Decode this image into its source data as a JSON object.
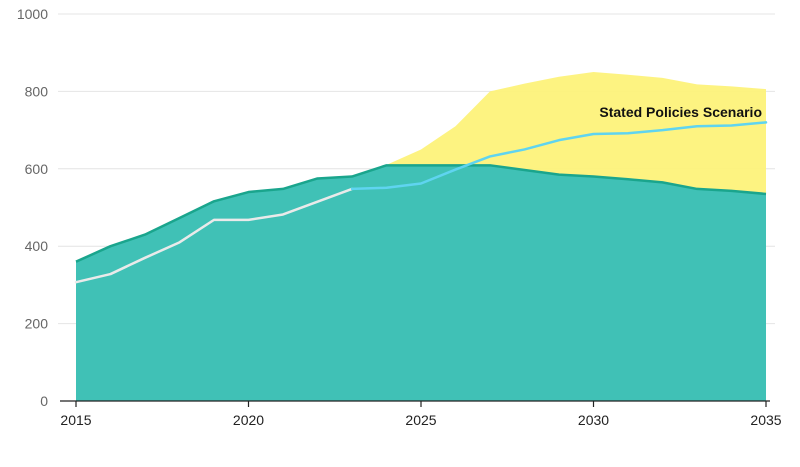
{
  "chart_data": {
    "type": "area",
    "title": "",
    "xlabel": "",
    "ylabel": "",
    "xlim": [
      2015,
      2035
    ],
    "ylim": [
      0,
      1000
    ],
    "y_ticks": [
      "0",
      "200",
      "400",
      "600",
      "800",
      "1000"
    ],
    "x_ticks": [
      "2015",
      "2020",
      "2025",
      "2030",
      "2035"
    ],
    "grid": "horizontal",
    "annotation": "Stated Policies Scenario",
    "series": [
      {
        "role": "upper-band",
        "color": "#fdf27a",
        "x": [
          2024,
          2025,
          2026,
          2027,
          2028,
          2029,
          2030,
          2031,
          2032,
          2033,
          2034,
          2035
        ],
        "values": [
          610,
          650,
          710,
          800,
          820,
          838,
          850,
          843,
          835,
          818,
          813,
          806
        ]
      },
      {
        "role": "lower-area",
        "color": "#40c1b6",
        "line_color": "#1aa58d",
        "x": [
          2015,
          2016,
          2017,
          2018,
          2019,
          2020,
          2021,
          2022,
          2023,
          2024,
          2025,
          2026,
          2027,
          2028,
          2029,
          2030,
          2031,
          2032,
          2033,
          2034,
          2035
        ],
        "values": [
          360,
          400,
          430,
          473,
          516,
          540,
          548,
          575,
          580,
          609,
          609,
          609,
          609,
          597,
          585,
          580,
          573,
          565,
          548,
          543,
          535
        ]
      },
      {
        "role": "historical-line",
        "color": "#eaeaea",
        "x": [
          2015,
          2016,
          2017,
          2018,
          2019,
          2020,
          2021,
          2022,
          2023
        ],
        "values": [
          307,
          328,
          370,
          410,
          468,
          468,
          482,
          515,
          548
        ]
      },
      {
        "name": "Stated Policies Scenario",
        "role": "projection-line",
        "color": "#5fd4f0",
        "x": [
          2023,
          2024,
          2025,
          2026,
          2027,
          2028,
          2029,
          2030,
          2031,
          2032,
          2033,
          2034,
          2035
        ],
        "values": [
          548,
          551,
          562,
          598,
          632,
          650,
          674,
          690,
          692,
          700,
          710,
          712,
          720
        ]
      }
    ]
  }
}
